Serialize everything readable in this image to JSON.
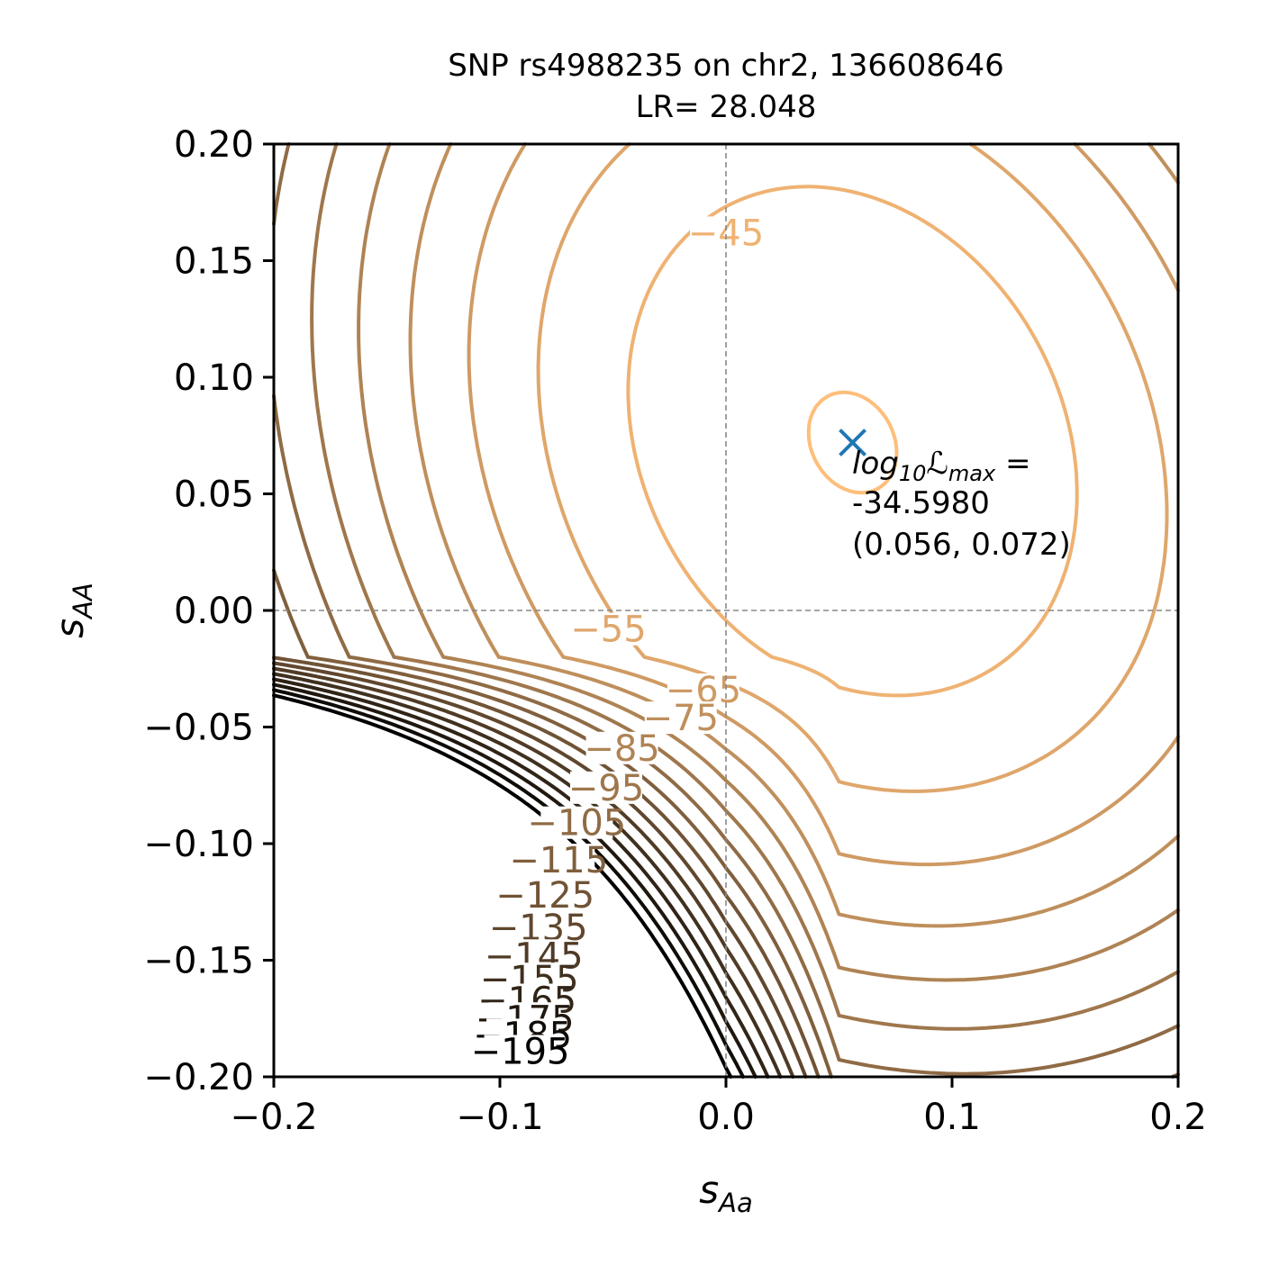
{
  "chart_data": {
    "type": "contour",
    "title": "SNP rs4988235 on chr2, 136608646",
    "subtitle": "LR= 28.048",
    "xlabel": {
      "main": "s",
      "sub": "Aa"
    },
    "ylabel": {
      "main": "s",
      "sub": "AA"
    },
    "xlim": [
      -0.2,
      0.2
    ],
    "ylim": [
      -0.2,
      0.2
    ],
    "x_ticks": [
      {
        "value": -0.2,
        "label": "−0.2"
      },
      {
        "value": -0.1,
        "label": "−0.1"
      },
      {
        "value": 0.0,
        "label": "0.0"
      },
      {
        "value": 0.1,
        "label": "0.1"
      },
      {
        "value": 0.2,
        "label": "0.2"
      }
    ],
    "y_ticks": [
      {
        "value": 0.2,
        "label": "0.20"
      },
      {
        "value": 0.15,
        "label": "0.15"
      },
      {
        "value": 0.1,
        "label": "0.10"
      },
      {
        "value": 0.05,
        "label": "0.05"
      },
      {
        "value": 0.0,
        "label": "0.00"
      },
      {
        "value": -0.05,
        "label": "−0.05"
      },
      {
        "value": -0.1,
        "label": "−0.10"
      },
      {
        "value": -0.15,
        "label": "−0.15"
      },
      {
        "value": -0.2,
        "label": "−0.20"
      }
    ],
    "reference_lines": {
      "x": 0.0,
      "y": 0.0,
      "style": "dashed gray"
    },
    "contour_levels": [
      -35,
      -45,
      -55,
      -65,
      -75,
      -85,
      -95,
      -105,
      -115,
      -125,
      -135,
      -145,
      -155,
      -165,
      -175,
      -185,
      -195
    ],
    "contour_labels": [
      {
        "text": "−45",
        "x": 0.0,
        "y": 0.162
      },
      {
        "text": "−55",
        "x": -0.052,
        "y": -0.008
      },
      {
        "text": "−65",
        "x": -0.01,
        "y": -0.034
      },
      {
        "text": "−75",
        "x": -0.02,
        "y": -0.046
      },
      {
        "text": "−85",
        "x": -0.046,
        "y": -0.059
      },
      {
        "text": "−95",
        "x": -0.053,
        "y": -0.076
      },
      {
        "text": "−105",
        "x": -0.066,
        "y": -0.091
      },
      {
        "text": "−115",
        "x": -0.074,
        "y": -0.107
      },
      {
        "text": "−125",
        "x": -0.08,
        "y": -0.122
      },
      {
        "text": "−135",
        "x": -0.083,
        "y": -0.136
      },
      {
        "text": "−145",
        "x": -0.085,
        "y": -0.148
      },
      {
        "text": "−155",
        "x": -0.087,
        "y": -0.158
      },
      {
        "text": "−165",
        "x": -0.088,
        "y": -0.167
      },
      {
        "text": "−175",
        "x": -0.089,
        "y": -0.175
      },
      {
        "text": "−185",
        "x": -0.09,
        "y": -0.182
      },
      {
        "text": "−195",
        "x": -0.091,
        "y": -0.189
      }
    ],
    "maximum": {
      "x": 0.056,
      "y": 0.072,
      "marker": "x",
      "color": "#1f77b4"
    },
    "annotation": {
      "line1_main": "log",
      "line1_sub": "10",
      "line1_L": "ℒ",
      "line1_Lsub": "max",
      "line1_eq": " =",
      "line2": "-34.5980",
      "line3": "(0.056, 0.072)"
    },
    "colormap": "copper",
    "colors": {
      "light": "#ffbe7a",
      "dark": "#000000",
      "marker": "#1f77b4",
      "reference": "#888888"
    },
    "grid": false
  }
}
